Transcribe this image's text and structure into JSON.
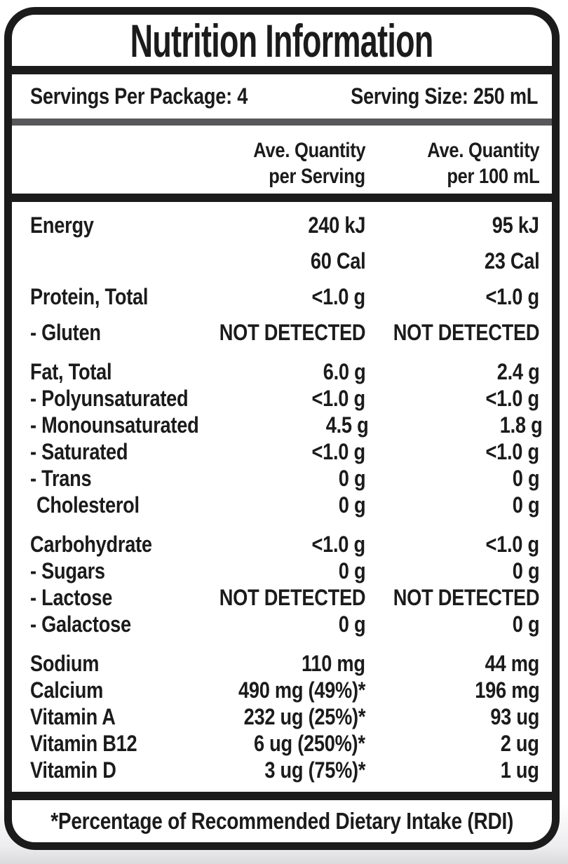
{
  "label": {
    "title": "Nutrition Information",
    "servings_per_package": "Servings Per Package: 4",
    "serving_size": "Serving Size: 250 mL",
    "columns": {
      "per_serving_line1": "Ave. Quantity",
      "per_serving_line2": "per Serving",
      "per_100ml_line1": "Ave. Quantity",
      "per_100ml_line2": "per 100 mL"
    },
    "footnote": "*Percentage of Recommended Dietary Intake (RDI)",
    "colors": {
      "text_black": "#1b1b1b",
      "divider_gray": "#58585a",
      "background": "#ffffff"
    },
    "sections": [
      {
        "name": "energy-protein",
        "rows": [
          {
            "label": "Energy",
            "per_serving": "240 kJ",
            "per_100ml": "95 kJ"
          },
          {
            "label": "",
            "per_serving": "60 Cal",
            "per_100ml": "23 Cal"
          },
          {
            "label": "Protein, Total",
            "per_serving": "<1.0 g",
            "per_100ml": "<1.0 g"
          },
          {
            "label": "- Gluten",
            "per_serving": "NOT DETECTED",
            "per_100ml": "NOT DETECTED"
          }
        ]
      },
      {
        "name": "fat",
        "rows": [
          {
            "label": "Fat, Total",
            "per_serving": "6.0 g",
            "per_100ml": "2.4 g"
          },
          {
            "label": "- Polyunsaturated",
            "per_serving": "<1.0 g",
            "per_100ml": "<1.0 g"
          },
          {
            "label": "- Monounsaturated",
            "per_serving": "4.5 g",
            "per_100ml": "1.8 g"
          },
          {
            "label": "- Saturated",
            "per_serving": "<1.0 g",
            "per_100ml": "<1.0 g"
          },
          {
            "label": "- Trans",
            "per_serving": "0 g",
            "per_100ml": "0 g"
          },
          {
            "label": "Cholesterol",
            "indent": true,
            "per_serving": "0 g",
            "per_100ml": "0 g"
          }
        ]
      },
      {
        "name": "carbohydrate",
        "rows": [
          {
            "label": "Carbohydrate",
            "per_serving": "<1.0 g",
            "per_100ml": "<1.0 g"
          },
          {
            "label": "- Sugars",
            "per_serving": "0 g",
            "per_100ml": "0 g"
          },
          {
            "label": "- Lactose",
            "per_serving": "NOT DETECTED",
            "per_100ml": "NOT DETECTED"
          },
          {
            "label": "- Galactose",
            "per_serving": "0 g",
            "per_100ml": "0 g"
          }
        ]
      },
      {
        "name": "minerals-vitamins",
        "rows": [
          {
            "label": "Sodium",
            "per_serving": "110 mg",
            "per_100ml": "44 mg"
          },
          {
            "label": "Calcium",
            "per_serving": "490 mg (49%)*",
            "per_100ml": "196 mg"
          },
          {
            "label": "Vitamin A",
            "per_serving": "232 ug (25%)*",
            "per_100ml": "93 ug"
          },
          {
            "label": "Vitamin B12",
            "per_serving": "6 ug (250%)*",
            "per_100ml": "2 ug"
          },
          {
            "label": "Vitamin D",
            "per_serving": "3 ug (75%)*",
            "per_100ml": "1 ug"
          }
        ]
      }
    ]
  }
}
